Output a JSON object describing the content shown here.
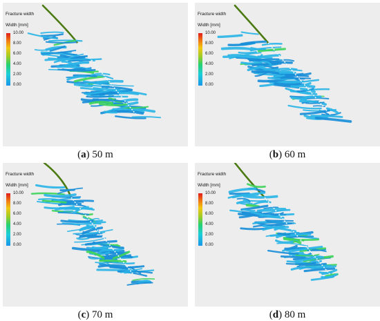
{
  "legend": {
    "title": "Fracture width",
    "unit": "Width [mm]",
    "ticks": [
      "10.00",
      "8.00",
      "6.00",
      "4.00",
      "2.00",
      "0.00"
    ]
  },
  "colors": {
    "panel_bg": "#ededed",
    "wellbore": "#4b7a12",
    "fracture_main": "#2bb4e6",
    "fracture_edge": "#1a8ed8",
    "fracture_hot": "#3fd35a",
    "perforation": "#e8f6ff"
  },
  "panels": [
    {
      "letter": "a",
      "label": "50 m"
    },
    {
      "letter": "b",
      "label": "60 m"
    },
    {
      "letter": "c",
      "label": "70 m"
    },
    {
      "letter": "d",
      "label": "80 m"
    }
  ]
}
